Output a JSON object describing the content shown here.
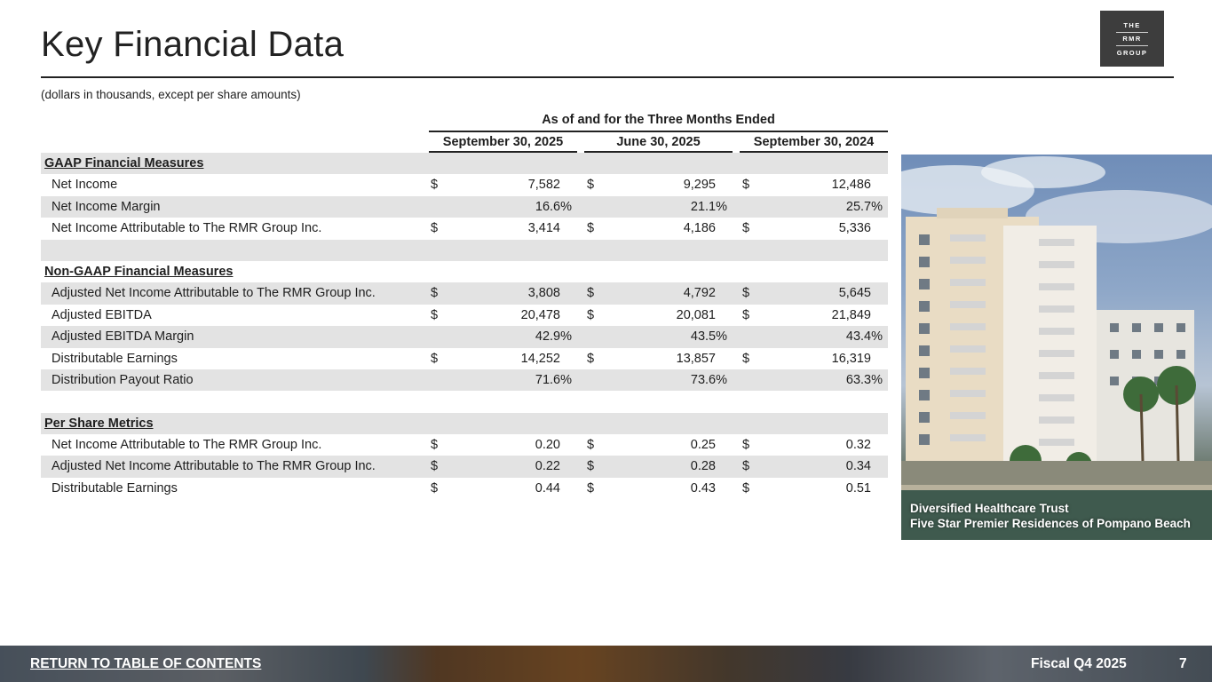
{
  "header": {
    "title": "Key Financial Data",
    "subtitle": "(dollars in thousands, except per share amounts)",
    "logo": [
      "THE",
      "RMR",
      "GROUP"
    ]
  },
  "table": {
    "period_header": "As of and for the Three Months Ended",
    "columns": [
      "September 30, 2025",
      "June 30, 2025",
      "September 30, 2024"
    ],
    "rows": [
      {
        "label": "GAAP Financial Measures",
        "section": true,
        "shade": true,
        "cur": [
          "",
          "",
          ""
        ],
        "values": [
          "",
          "",
          ""
        ]
      },
      {
        "label": "Net Income",
        "shade": false,
        "cur": [
          "$",
          "$",
          "$"
        ],
        "values": [
          "7,582",
          "9,295",
          "12,486"
        ]
      },
      {
        "label": "Net Income Margin",
        "shade": true,
        "cur": [
          "",
          "",
          ""
        ],
        "values": [
          "16.6%",
          "21.1%",
          "25.7%"
        ]
      },
      {
        "label": "Net Income Attributable to The RMR Group Inc.",
        "shade": false,
        "cur": [
          "$",
          "$",
          "$"
        ],
        "values": [
          "3,414",
          "4,186",
          "5,336"
        ]
      },
      {
        "label": "",
        "shade": true,
        "cur": [
          "",
          "",
          ""
        ],
        "values": [
          "",
          "",
          ""
        ]
      },
      {
        "label": "Non-GAAP Financial Measures",
        "section": true,
        "shade": false,
        "cur": [
          "",
          "",
          ""
        ],
        "values": [
          "",
          "",
          ""
        ]
      },
      {
        "label": "Adjusted Net Income Attributable to The RMR Group Inc.",
        "shade": true,
        "cur": [
          "$",
          "$",
          "$"
        ],
        "values": [
          "3,808",
          "4,792",
          "5,645"
        ]
      },
      {
        "label": "Adjusted EBITDA",
        "shade": false,
        "cur": [
          "$",
          "$",
          "$"
        ],
        "values": [
          "20,478",
          "20,081",
          "21,849"
        ]
      },
      {
        "label": "Adjusted EBITDA Margin",
        "shade": true,
        "cur": [
          "",
          "",
          ""
        ],
        "values": [
          "42.9%",
          "43.5%",
          "43.4%"
        ]
      },
      {
        "label": "Distributable Earnings",
        "shade": false,
        "cur": [
          "$",
          "$",
          "$"
        ],
        "values": [
          "14,252",
          "13,857",
          "16,319"
        ]
      },
      {
        "label": "Distribution Payout Ratio",
        "shade": true,
        "cur": [
          "",
          "",
          ""
        ],
        "values": [
          "71.6%",
          "73.6%",
          "63.3%"
        ]
      },
      {
        "label": "",
        "shade": false,
        "cur": [
          "",
          "",
          ""
        ],
        "values": [
          "",
          "",
          ""
        ]
      },
      {
        "label": "Per Share Metrics",
        "section": true,
        "shade": true,
        "cur": [
          "",
          "",
          ""
        ],
        "values": [
          "",
          "",
          ""
        ]
      },
      {
        "label": "Net Income Attributable to The RMR Group Inc.",
        "shade": false,
        "cur": [
          "$",
          "$",
          "$"
        ],
        "values": [
          "0.20",
          "0.25",
          "0.32"
        ]
      },
      {
        "label": "Adjusted Net Income Attributable to The RMR Group Inc.",
        "shade": true,
        "cur": [
          "$",
          "$",
          "$"
        ],
        "values": [
          "0.22",
          "0.28",
          "0.34"
        ]
      },
      {
        "label": "Distributable Earnings",
        "shade": false,
        "cur": [
          "$",
          "$",
          "$"
        ],
        "values": [
          "0.44",
          "0.43",
          "0.51"
        ]
      }
    ]
  },
  "photo": {
    "caption_line1": "Diversified Healthcare Trust",
    "caption_line2": "Five Star Premier Residences of Pompano Beach"
  },
  "footer": {
    "toc_link": "RETURN TO TABLE OF CONTENTS",
    "fiscal": "Fiscal Q4 2025",
    "page_number": "7"
  }
}
